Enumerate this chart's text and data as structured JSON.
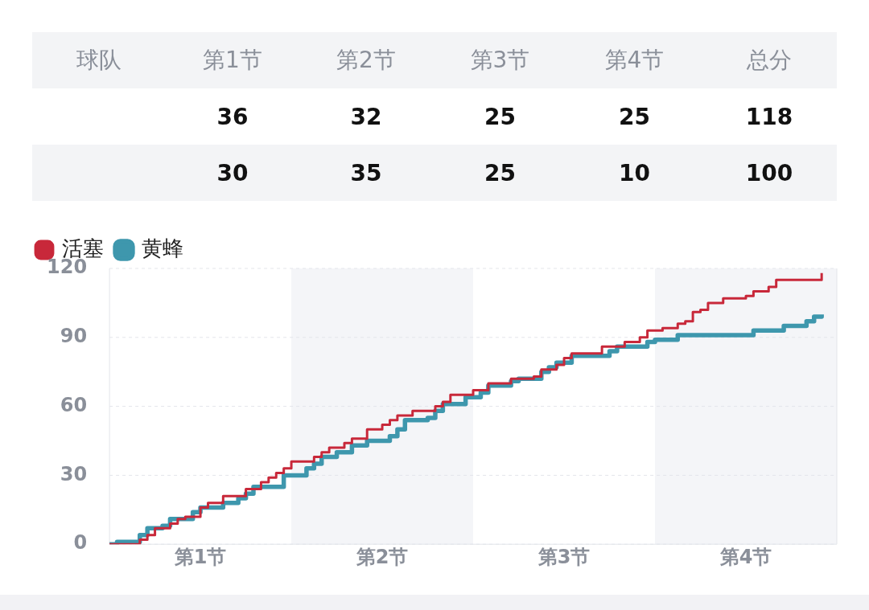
{
  "chart_data": [
    {
      "type": "other",
      "categories": [
        "球队",
        "第1节",
        "第2节",
        "第3节",
        "第4节",
        "总分"
      ],
      "data_labels": true,
      "series": [
        {
          "values": [
            null,
            36,
            32,
            25,
            25,
            118
          ]
        },
        {
          "values": [
            null,
            30,
            35,
            25,
            10,
            100
          ]
        }
      ]
    },
    {
      "type": "step",
      "categories": [
        null,
        null,
        null,
        null,
        null,
        null,
        null,
        null,
        null,
        null,
        null,
        null,
        "第1节",
        null,
        null,
        null,
        null,
        null,
        null,
        null,
        null,
        null,
        null,
        null,
        null,
        null,
        null,
        null,
        null,
        null,
        null,
        null,
        null,
        null,
        null,
        null,
        "第2节",
        null,
        null,
        null,
        null,
        null,
        null,
        null,
        null,
        null,
        null,
        null,
        null,
        null,
        null,
        null,
        null,
        null,
        null,
        null,
        null,
        null,
        null,
        null,
        "第3节",
        null,
        null,
        null,
        null,
        null,
        null,
        null,
        null,
        null,
        null,
        null,
        null,
        null,
        null,
        null,
        null,
        null,
        null,
        null,
        null,
        null,
        null,
        null,
        "第4节",
        null,
        null,
        null,
        null,
        null,
        null,
        null,
        null,
        null,
        null,
        null,
        null
      ],
      "ylim": [
        0,
        120
      ],
      "yticks": [
        0,
        30,
        60,
        90,
        120
      ],
      "grid": "y",
      "legend": "top left",
      "marker": "none",
      "series": [
        {
          "name": "活塞",
          "color": "#c8283a",
          "values": [
            0,
            0,
            0,
            0,
            2,
            4,
            7,
            7,
            9,
            11,
            12,
            12,
            16,
            18,
            18,
            21,
            21,
            21,
            24,
            24,
            27,
            29,
            31,
            33,
            36,
            36,
            36,
            38,
            40,
            42,
            42,
            44,
            46,
            46,
            50,
            50,
            52,
            54,
            56,
            56,
            58,
            58,
            58,
            60,
            62,
            65,
            65,
            65,
            67,
            67,
            70,
            70,
            70,
            72,
            72,
            72,
            73,
            76,
            76,
            78,
            81,
            83,
            83,
            83,
            83,
            86,
            86,
            86,
            88,
            88,
            90,
            93,
            93,
            94,
            94,
            96,
            97,
            101,
            102,
            105,
            105,
            107,
            107,
            107,
            108,
            110,
            110,
            112,
            115,
            115,
            115,
            115,
            115,
            115,
            118,
            null,
            null
          ]
        },
        {
          "name": "黄蜂",
          "color": "#3e97ad",
          "values": [
            0,
            1,
            1,
            1,
            4,
            7,
            7,
            8,
            11,
            11,
            11,
            14,
            16,
            16,
            16,
            18,
            18,
            20,
            22,
            25,
            25,
            25,
            25,
            30,
            30,
            30,
            33,
            35,
            38,
            38,
            40,
            40,
            43,
            43,
            45,
            45,
            45,
            47,
            50,
            54,
            54,
            54,
            55,
            58,
            61,
            61,
            61,
            64,
            64,
            66,
            69,
            69,
            69,
            71,
            72,
            72,
            72,
            75,
            77,
            79,
            79,
            82,
            82,
            82,
            82,
            82,
            84,
            86,
            86,
            86,
            86,
            88,
            89,
            89,
            89,
            91,
            91,
            91,
            91,
            91,
            91,
            91,
            91,
            91,
            91,
            93,
            93,
            93,
            93,
            95,
            95,
            95,
            97,
            99,
            100,
            null,
            null
          ]
        }
      ]
    }
  ]
}
